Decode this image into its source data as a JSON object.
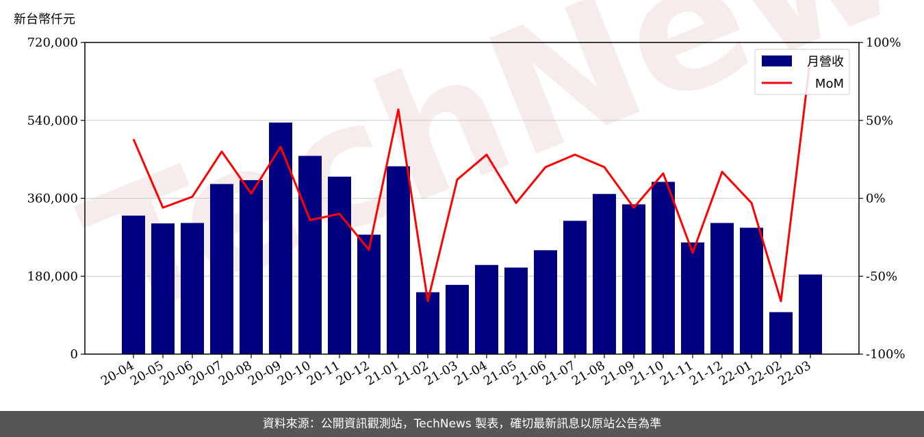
{
  "watermark_text": "TechNews",
  "footer_text": "資料來源：公開資訊觀測站，TechNews 製表，確切最新訊息以原站公告為準",
  "chart_data": {
    "type": "bar",
    "categories": [
      "20-04",
      "20-05",
      "20-06",
      "20-07",
      "20-08",
      "20-09",
      "20-10",
      "20-11",
      "20-12",
      "21-01",
      "21-02",
      "21-03",
      "21-04",
      "21-05",
      "21-06",
      "21-07",
      "21-08",
      "21-09",
      "21-10",
      "21-11",
      "21-12",
      "22-01",
      "22-02",
      "22-03"
    ],
    "series": [
      {
        "name": "月營收",
        "type": "bar",
        "axis": "left",
        "color": "#000080",
        "values": [
          320000,
          302000,
          303000,
          393000,
          402000,
          535000,
          458000,
          410000,
          276000,
          434000,
          143000,
          160000,
          206000,
          200000,
          240000,
          308000,
          370000,
          346000,
          398000,
          258000,
          303000,
          292000,
          97000,
          184000
        ]
      },
      {
        "name": "MoM",
        "type": "line",
        "axis": "right",
        "color": "#ff0000",
        "values": [
          38,
          -6,
          1,
          30,
          3,
          33,
          -14,
          -10,
          -33,
          57,
          -66,
          12,
          28,
          -3,
          20,
          28,
          20,
          -6,
          16,
          -35,
          17,
          -3,
          -66,
          90
        ]
      }
    ],
    "y_left": {
      "label": "新台幣仟元",
      "min": 0,
      "max": 720000,
      "ticks": [
        0,
        180000,
        360000,
        540000,
        720000
      ],
      "tick_labels": [
        "0",
        "180,000",
        "360,000",
        "540,000",
        "720,000"
      ]
    },
    "y_right": {
      "min": -100,
      "max": 100,
      "ticks": [
        -100,
        -50,
        0,
        50,
        100
      ],
      "tick_labels": [
        "-100%",
        "-50%",
        "0%",
        "50%",
        "100%"
      ]
    },
    "grid": "horizontal",
    "legend_position": "top-right"
  }
}
